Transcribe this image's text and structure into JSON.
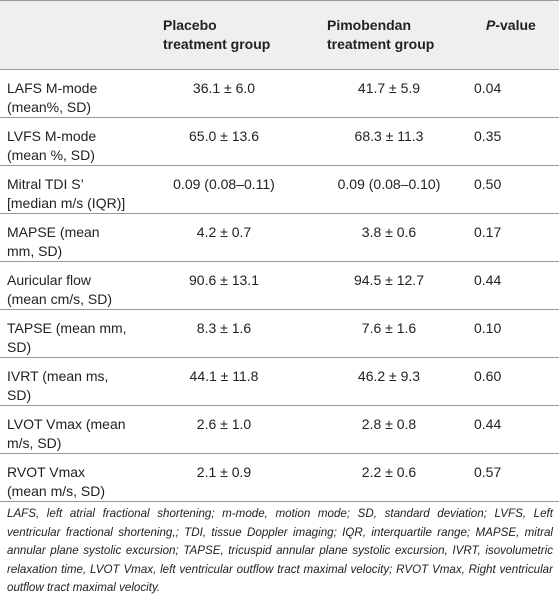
{
  "header": {
    "columns": [
      {
        "lines": [
          "Placebo",
          "treatment group"
        ]
      },
      {
        "lines": [
          "Pimobendan",
          "treatment group"
        ]
      },
      {
        "italic": "P",
        "text": "-value"
      }
    ]
  },
  "table": {
    "rows": [
      [
        [
          "LAFS M-mode",
          "(mean%, SD)"
        ],
        "36.1 ± 6.0",
        "41.7 ± 5.9",
        "0.04"
      ],
      [
        [
          "LVFS M-mode",
          "(mean %, SD)"
        ],
        "65.0 ± 13.6",
        "68.3 ± 11.3",
        "0.35"
      ],
      [
        [
          "Mitral TDI S’",
          "[median m/s (IQR)]"
        ],
        "0.09 (0.08–0.11)",
        "0.09 (0.08–0.10)",
        "0.50"
      ],
      [
        [
          "MAPSE (mean",
          "mm, SD)"
        ],
        "4.2 ± 0.7",
        "3.8 ± 0.6",
        "0.17"
      ],
      [
        [
          "Auricular flow",
          "(mean cm/s, SD)"
        ],
        "90.6 ± 13.1",
        "94.5 ± 12.7",
        "0.44"
      ],
      [
        [
          "TAPSE (mean mm,",
          "SD)"
        ],
        "8.3 ± 1.6",
        "7.6 ± 1.6",
        "0.10"
      ],
      [
        [
          "IVRT (mean ms,",
          "SD)"
        ],
        "44.1 ± 11.8",
        "46.2 ± 9.3",
        "0.60"
      ],
      [
        [
          "LVOT Vmax (mean",
          "m/s, SD)"
        ],
        "2.6 ± 1.0",
        "2.8 ± 0.8",
        "0.44"
      ],
      [
        [
          "RVOT Vmax",
          "(mean m/s, SD)"
        ],
        "2.1 ± 0.9",
        "2.2 ± 0.6",
        "0.57"
      ]
    ]
  },
  "footnote": "LAFS, left atrial fractional shortening; m-mode, motion mode; SD, standard deviation; LVFS, Left ventricular fractional shortening,; TDI, tissue Doppler imaging; IQR, interquartile range; MAPSE, mitral annular plane systolic excursion; TAPSE, tricuspid annular plane systolic excursion, IVRT, isovolumetric relaxation time, LVOT Vmax, left ventricular outflow tract maximal velocity; RVOT Vmax, Right ventricular outflow tract maximal velocity."
}
